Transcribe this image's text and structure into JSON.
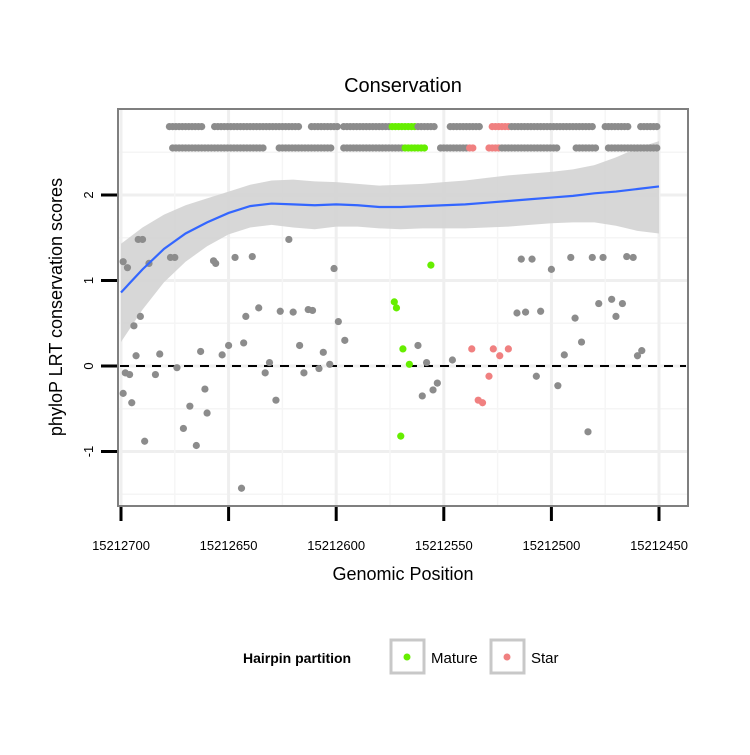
{
  "chart_data": {
    "type": "scatter",
    "title": "Conservation",
    "xlabel": "Genomic Position",
    "ylabel": "phyloP LRT conservation scores",
    "x_reversed": true,
    "xlim": [
      15212450,
      15212700
    ],
    "ylim": [
      -1.6,
      2.9
    ],
    "x_ticks": [
      15212700,
      15212650,
      15212600,
      15212550,
      15212500,
      15212450
    ],
    "x_tick_labels": [
      "15212700",
      "15212650",
      "15212600",
      "15212550",
      "15212500",
      "15212450"
    ],
    "y_ticks": [
      -1,
      0,
      1,
      2
    ],
    "y_tick_labels": [
      "-1",
      "0",
      "1",
      "2"
    ],
    "grid": true,
    "reference_line": {
      "y": 0,
      "style": "dashed"
    },
    "legend": {
      "title": "Hairpin partition",
      "position": "bottom",
      "entries": [
        {
          "label": "Mature",
          "color": "#66ee00"
        },
        {
          "label": "Star",
          "color": "#f08080"
        }
      ]
    },
    "colors": {
      "other": "#8c8c8c",
      "mature": "#66ee00",
      "star": "#f08080",
      "smooth": "#3366ff",
      "band": "#d3d3d3"
    },
    "rows": [
      {
        "y": 2.55,
        "x_start": 15212700,
        "x_end": 15212450,
        "step": 1.5
      },
      {
        "y": 2.8,
        "x_start": 15212700,
        "x_end": 15212450,
        "step": 1.5
      }
    ],
    "row_gaps": [
      {
        "row": 0,
        "from": 15212700,
        "to": 15212677
      },
      {
        "row": 0,
        "from": 15212633,
        "to": 15212628
      },
      {
        "row": 0,
        "from": 15212602,
        "to": 15212597
      },
      {
        "row": 0,
        "from": 15212558,
        "to": 15212553
      },
      {
        "row": 0,
        "from": 15212535,
        "to": 15212530
      },
      {
        "row": 0,
        "from": 15212497,
        "to": 15212490
      },
      {
        "row": 0,
        "from": 15212478,
        "to": 15212474
      },
      {
        "row": 1,
        "from": 15212700,
        "to": 15212678
      },
      {
        "row": 1,
        "from": 15212661,
        "to": 15212657
      },
      {
        "row": 1,
        "from": 15212617,
        "to": 15212612
      },
      {
        "row": 1,
        "from": 15212599,
        "to": 15212597
      },
      {
        "row": 1,
        "from": 15212553,
        "to": 15212548
      },
      {
        "row": 1,
        "from": 15212533,
        "to": 15212529
      },
      {
        "row": 1,
        "from": 15212480,
        "to": 15212476
      },
      {
        "row": 1,
        "from": 15212463,
        "to": 15212460
      }
    ],
    "row_mature": [
      {
        "row": 0,
        "from": 15212568,
        "to": 15212557
      },
      {
        "row": 1,
        "from": 15212574,
        "to": 15212563
      }
    ],
    "row_star": [
      {
        "row": 0,
        "from": 15212539,
        "to": 15212524
      },
      {
        "row": 1,
        "from": 15212533,
        "to": 15212519
      }
    ],
    "series": [
      {
        "name": "Mature",
        "color": "#66ee00",
        "points": [
          [
            15212573,
            0.75
          ],
          [
            15212572,
            0.68
          ],
          [
            15212569,
            0.2
          ],
          [
            15212566,
            0.02
          ],
          [
            15212570,
            -0.82
          ],
          [
            15212556,
            1.18
          ]
        ]
      },
      {
        "name": "Star",
        "color": "#f08080",
        "points": [
          [
            15212537,
            0.2
          ],
          [
            15212534,
            -0.4
          ],
          [
            15212532,
            -0.43
          ],
          [
            15212529,
            -0.12
          ],
          [
            15212527,
            0.2
          ],
          [
            15212524,
            0.12
          ],
          [
            15212520,
            0.2
          ]
        ]
      },
      {
        "points": [
          [
            15212699,
            1.22
          ],
          [
            15212697,
            1.15
          ],
          [
            15212699,
            -0.32
          ],
          [
            15212698,
            -0.08
          ],
          [
            15212696,
            -0.1
          ],
          [
            15212695,
            -0.43
          ],
          [
            15212694,
            0.47
          ],
          [
            15212693,
            0.12
          ],
          [
            15212692,
            1.48
          ],
          [
            15212690,
            1.48
          ],
          [
            15212691,
            0.58
          ],
          [
            15212689,
            -0.88
          ],
          [
            15212687,
            1.2
          ],
          [
            15212684,
            -0.1
          ],
          [
            15212682,
            0.14
          ],
          [
            15212677,
            1.27
          ],
          [
            15212675,
            1.27
          ],
          [
            15212674,
            -0.02
          ],
          [
            15212671,
            -0.73
          ],
          [
            15212668,
            -0.47
          ],
          [
            15212665,
            -0.93
          ],
          [
            15212663,
            0.17
          ],
          [
            15212661,
            -0.27
          ],
          [
            15212660,
            -0.55
          ],
          [
            15212657,
            1.23
          ],
          [
            15212656,
            1.2
          ],
          [
            15212653,
            0.13
          ],
          [
            15212650,
            0.24
          ],
          [
            15212647,
            1.27
          ],
          [
            15212644,
            -1.43
          ],
          [
            15212643,
            0.27
          ],
          [
            15212642,
            0.58
          ],
          [
            15212639,
            1.28
          ],
          [
            15212636,
            0.68
          ],
          [
            15212633,
            -0.08
          ],
          [
            15212631,
            0.04
          ],
          [
            15212628,
            -0.4
          ],
          [
            15212626,
            0.64
          ],
          [
            15212622,
            1.48
          ],
          [
            15212620,
            0.63
          ],
          [
            15212617,
            0.24
          ],
          [
            15212615,
            -0.08
          ],
          [
            15212613,
            0.66
          ],
          [
            15212611,
            0.65
          ],
          [
            15212608,
            -0.03
          ],
          [
            15212606,
            0.16
          ],
          [
            15212603,
            0.02
          ],
          [
            15212601,
            1.14
          ],
          [
            15212599,
            0.52
          ],
          [
            15212596,
            0.3
          ],
          [
            15212562,
            0.24
          ],
          [
            15212560,
            -0.35
          ],
          [
            15212558,
            0.04
          ],
          [
            15212555,
            -0.28
          ],
          [
            15212553,
            -0.2
          ],
          [
            15212546,
            0.07
          ],
          [
            15212516,
            0.62
          ],
          [
            15212514,
            1.25
          ],
          [
            15212512,
            0.63
          ],
          [
            15212509,
            1.25
          ],
          [
            15212507,
            -0.12
          ],
          [
            15212505,
            0.64
          ],
          [
            15212500,
            1.13
          ],
          [
            15212497,
            -0.23
          ],
          [
            15212494,
            0.13
          ],
          [
            15212491,
            1.27
          ],
          [
            15212489,
            0.56
          ],
          [
            15212486,
            0.28
          ],
          [
            15212483,
            -0.77
          ],
          [
            15212481,
            1.27
          ],
          [
            15212478,
            0.73
          ],
          [
            15212476,
            1.27
          ],
          [
            15212472,
            0.78
          ],
          [
            15212470,
            0.58
          ],
          [
            15212467,
            0.73
          ],
          [
            15212465,
            1.28
          ],
          [
            15212462,
            1.27
          ],
          [
            15212460,
            0.12
          ],
          [
            15212458,
            0.18
          ]
        ]
      }
    ],
    "smooth": {
      "x": [
        15212700,
        15212690,
        15212680,
        15212670,
        15212660,
        15212650,
        15212640,
        15212630,
        15212620,
        15212610,
        15212600,
        15212590,
        15212580,
        15212570,
        15212560,
        15212550,
        15212540,
        15212530,
        15212520,
        15212510,
        15212500,
        15212490,
        15212480,
        15212470,
        15212460,
        15212450
      ],
      "y": [
        0.86,
        1.13,
        1.37,
        1.55,
        1.68,
        1.79,
        1.87,
        1.9,
        1.89,
        1.88,
        1.89,
        1.88,
        1.86,
        1.86,
        1.87,
        1.88,
        1.89,
        1.91,
        1.93,
        1.95,
        1.97,
        1.99,
        2.02,
        2.04,
        2.07,
        2.1
      ],
      "band_upper": [
        1.43,
        1.62,
        1.77,
        1.88,
        1.96,
        2.04,
        2.12,
        2.17,
        2.18,
        2.16,
        2.15,
        2.13,
        2.11,
        2.12,
        2.13,
        2.15,
        2.17,
        2.2,
        2.23,
        2.25,
        2.27,
        2.3,
        2.35,
        2.44,
        2.55,
        2.63
      ],
      "band_lower": [
        0.28,
        0.66,
        0.98,
        1.22,
        1.4,
        1.54,
        1.62,
        1.65,
        1.62,
        1.6,
        1.63,
        1.63,
        1.61,
        1.6,
        1.61,
        1.61,
        1.61,
        1.62,
        1.63,
        1.65,
        1.67,
        1.68,
        1.68,
        1.64,
        1.58,
        1.55
      ]
    }
  }
}
